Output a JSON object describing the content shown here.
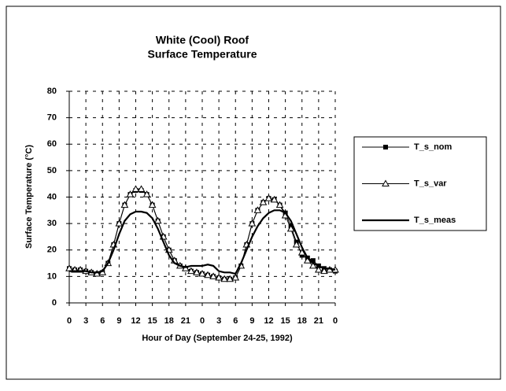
{
  "chart_data": {
    "type": "line",
    "title": [
      "White (Cool) Roof",
      "Surface Temperature"
    ],
    "xlabel": "Hour of Day (September 24-25, 1992)",
    "ylabel": "Surface Temperature (°C)",
    "x": [
      0,
      1,
      2,
      3,
      4,
      5,
      6,
      7,
      8,
      9,
      10,
      11,
      12,
      13,
      14,
      15,
      16,
      17,
      18,
      19,
      20,
      21,
      22,
      23,
      24,
      25,
      26,
      27,
      28,
      29,
      30,
      31,
      32,
      33,
      34,
      35,
      36,
      37,
      38,
      39,
      40,
      41,
      42,
      43,
      44,
      45,
      46,
      47,
      48
    ],
    "xlim": [
      0,
      48
    ],
    "xticks": [
      0,
      3,
      6,
      9,
      12,
      15,
      18,
      21,
      {
        "value": 24,
        "label": "0"
      },
      {
        "value": 27,
        "label": "3"
      },
      {
        "value": 30,
        "label": "6"
      },
      {
        "value": 33,
        "label": "9"
      },
      {
        "value": 36,
        "label": "12"
      },
      {
        "value": 39,
        "label": "15"
      },
      {
        "value": 42,
        "label": "18"
      },
      {
        "value": 45,
        "label": "21"
      },
      {
        "value": 48,
        "label": "0"
      }
    ],
    "ylim": [
      0,
      80
    ],
    "yticks": [
      0,
      10,
      20,
      30,
      40,
      50,
      60,
      70,
      80
    ],
    "grid": true,
    "legend": "right",
    "series": [
      {
        "name": "T_s_nom",
        "color": "#000000",
        "marker": "square",
        "values": [
          13,
          12.5,
          12.5,
          12,
          11.5,
          11,
          11.5,
          15,
          22,
          30,
          37,
          41,
          42.5,
          42.5,
          41,
          37,
          31,
          25,
          20,
          16,
          14,
          13,
          12,
          11.5,
          11,
          10.5,
          10,
          9.5,
          9,
          9,
          9.5,
          14,
          22,
          30,
          35,
          38,
          39.5,
          39,
          37,
          34,
          29,
          23,
          18,
          17,
          16,
          14,
          13,
          12.5,
          12
        ]
      },
      {
        "name": "T_s_var",
        "color": "#000000",
        "marker": "triangle",
        "values": [
          13,
          12.5,
          12.5,
          12,
          11.5,
          11,
          11.5,
          15,
          22,
          30,
          37,
          41,
          43,
          43,
          41,
          37,
          31,
          25,
          20,
          16,
          14,
          13,
          12,
          11.5,
          11,
          10.5,
          10,
          9.5,
          9,
          9,
          9.5,
          14,
          22,
          30,
          35,
          38,
          39.5,
          39,
          37,
          33,
          28,
          22,
          19,
          16,
          14,
          12.5,
          12,
          12.5,
          12.5
        ]
      },
      {
        "name": "T_s_meas",
        "color": "#000000",
        "marker": "none",
        "values": [
          12,
          12,
          12,
          12,
          11.5,
          11.5,
          12,
          15,
          20,
          26,
          31,
          33.5,
          34.5,
          34.5,
          34,
          32,
          28,
          23,
          18,
          15,
          14,
          13.5,
          14,
          14,
          14,
          14.5,
          14,
          12,
          11.5,
          11.5,
          11,
          15,
          20,
          25,
          29,
          32,
          34,
          35,
          35,
          34,
          31,
          26,
          21,
          17,
          15,
          14,
          13,
          13,
          12.5
        ]
      }
    ]
  }
}
